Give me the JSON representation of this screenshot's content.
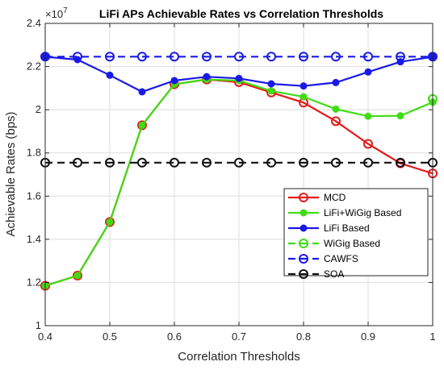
{
  "chart_data": {
    "type": "line",
    "title": "LiFi APs Achievable Rates vs Correlation Thresholds",
    "xlabel": "Correlation Thresholds",
    "ylabel": "Achievable Rates (bps)",
    "y_exponent_base": "×10",
    "y_exponent_power": "7",
    "xlim": [
      0.4,
      1
    ],
    "ylim": [
      1,
      2.4
    ],
    "x_ticks": [
      0.4,
      0.5,
      0.6,
      0.7,
      0.8,
      0.9,
      1
    ],
    "x_tick_labels": [
      "0.4",
      "0.5",
      "0.6",
      "0.7",
      "0.8",
      "0.9",
      "1"
    ],
    "y_ticks": [
      1,
      1.2,
      1.4,
      1.6,
      1.8,
      2,
      2.2,
      2.4
    ],
    "y_tick_labels": [
      "1",
      "1.2",
      "1.4",
      "1.6",
      "1.8",
      "2",
      "2.2",
      "2.4"
    ],
    "grid": true,
    "legend_position": "bottom-right",
    "x": [
      0.4,
      0.45,
      0.5,
      0.55,
      0.6,
      0.65,
      0.7,
      0.75,
      0.8,
      0.85,
      0.9,
      0.95,
      1
    ],
    "series": [
      {
        "name": "MCD",
        "color": "#e41a1a",
        "marker": "open-circle",
        "line": "solid",
        "values": [
          1.185,
          1.232,
          1.48,
          1.928,
          2.118,
          2.14,
          2.128,
          2.08,
          2.033,
          1.947,
          1.842,
          1.752,
          1.705
        ]
      },
      {
        "name": "LiFi+WiGig Based",
        "color": "#3fdc14",
        "marker": "filled-dot",
        "line": "solid",
        "values": [
          1.185,
          1.232,
          1.48,
          1.928,
          2.118,
          2.14,
          2.135,
          2.087,
          2.06,
          2.003,
          1.97,
          1.972,
          2.035
        ]
      },
      {
        "name": "LiFi Based",
        "color": "#1a1ae6",
        "marker": "filled-dot",
        "line": "solid",
        "values": [
          2.245,
          2.232,
          2.16,
          2.083,
          2.135,
          2.153,
          2.145,
          2.12,
          2.11,
          2.126,
          2.175,
          2.222,
          2.245
        ]
      },
      {
        "name": "WiGig Based",
        "color": "#3fdc14",
        "marker": "open-circle",
        "line": "dashed",
        "values": [
          null,
          null,
          null,
          null,
          null,
          null,
          null,
          null,
          null,
          null,
          null,
          null,
          2.05
        ]
      },
      {
        "name": "CAWFS",
        "color": "#1a1ae6",
        "marker": "open-circle",
        "line": "dashed",
        "values": [
          2.246,
          2.246,
          2.246,
          2.246,
          2.246,
          2.246,
          2.246,
          2.246,
          2.246,
          2.246,
          2.246,
          2.246,
          2.246
        ]
      },
      {
        "name": "SOA",
        "color": "#111111",
        "marker": "open-circle",
        "line": "dashed",
        "values": [
          1.755,
          1.755,
          1.755,
          1.755,
          1.755,
          1.755,
          1.755,
          1.755,
          1.755,
          1.755,
          1.755,
          1.755,
          1.755
        ]
      }
    ]
  }
}
